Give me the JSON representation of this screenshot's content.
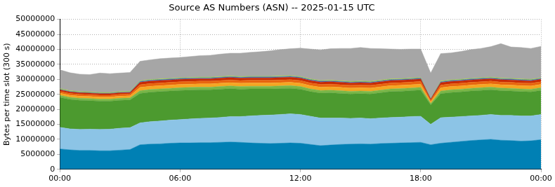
{
  "chart_data": {
    "type": "area",
    "title": "Source AS Numbers (ASN) -- 2025-01-15 UTC",
    "y_label": "Bytes per time slot (300 s)",
    "stacked": true,
    "grid": true,
    "categories": [
      "00:00",
      null,
      null,
      null,
      null,
      null,
      null,
      null,
      null,
      null,
      null,
      null,
      "06:00",
      null,
      null,
      null,
      null,
      null,
      null,
      null,
      null,
      null,
      null,
      null,
      "12:00",
      null,
      null,
      null,
      null,
      null,
      null,
      null,
      null,
      null,
      null,
      null,
      "18:00",
      null,
      null,
      null,
      null,
      null,
      null,
      null,
      null,
      null,
      null,
      null,
      "00:00"
    ],
    "ylim": [
      0,
      50000000
    ],
    "yticks": [
      0,
      5000000,
      10000000,
      15000000,
      20000000,
      25000000,
      30000000,
      35000000,
      40000000,
      45000000,
      50000000
    ],
    "series": [
      {
        "color": "#0080b4",
        "values": [
          6800000,
          6500000,
          6300000,
          6300000,
          6200000,
          6200000,
          6400000,
          6600000,
          8200000,
          8400000,
          8500000,
          8700000,
          8800000,
          8800000,
          8900000,
          8900000,
          9000000,
          9100000,
          9000000,
          8800000,
          8700000,
          8600000,
          8700000,
          8800000,
          8700000,
          8300000,
          7900000,
          8100000,
          8300000,
          8400000,
          8500000,
          8400000,
          8600000,
          8700000,
          8800000,
          8900000,
          9000000,
          8200000,
          8700000,
          9000000,
          9300000,
          9600000,
          9800000,
          10000000,
          9700000,
          9600000,
          9400000,
          9500000,
          9900000
        ]
      },
      {
        "color": "#8cc4e6",
        "values": [
          7200000,
          7000000,
          7000000,
          7100000,
          7100000,
          7200000,
          7300000,
          7300000,
          7300000,
          7500000,
          7600000,
          7700000,
          7800000,
          8000000,
          8100000,
          8200000,
          8300000,
          8500000,
          8600000,
          9000000,
          9300000,
          9500000,
          9600000,
          9700000,
          9600000,
          9400000,
          9200000,
          9000000,
          8800000,
          8600000,
          8600000,
          8500000,
          8500000,
          8600000,
          8600000,
          8700000,
          8700000,
          6800000,
          8500000,
          8400000,
          8300000,
          8200000,
          8200000,
          8300000,
          8300000,
          8400000,
          8400000,
          8300000,
          8400000
        ]
      },
      {
        "color": "#4c9a2f",
        "values": [
          10000000,
          9800000,
          9700000,
          9500000,
          9400000,
          9300000,
          9300000,
          9200000,
          9800000,
          9800000,
          9800000,
          9700000,
          9700000,
          9600000,
          9500000,
          9400000,
          9400000,
          9300000,
          9100000,
          9000000,
          8800000,
          8700000,
          8600000,
          8500000,
          8400000,
          8200000,
          8300000,
          8400000,
          8200000,
          8100000,
          8100000,
          8200000,
          8400000,
          8600000,
          8600000,
          8600000,
          8700000,
          6500000,
          8000000,
          8200000,
          8200000,
          8300000,
          8300000,
          8200000,
          8200000,
          8100000,
          8100000,
          8000000,
          8000000
        ]
      },
      {
        "color": "#7ab648",
        "values": [
          700000,
          700000,
          700000,
          700000,
          700000,
          700000,
          700000,
          700000,
          900000,
          900000,
          900000,
          900000,
          900000,
          900000,
          900000,
          900000,
          900000,
          900000,
          900000,
          900000,
          900000,
          900000,
          900000,
          900000,
          900000,
          900000,
          900000,
          900000,
          900000,
          900000,
          900000,
          900000,
          900000,
          900000,
          900000,
          900000,
          900000,
          450000,
          900000,
          900000,
          900000,
          900000,
          900000,
          900000,
          900000,
          900000,
          900000,
          900000,
          900000
        ]
      },
      {
        "color": "#f5a623",
        "values": [
          700000,
          700000,
          700000,
          700000,
          700000,
          700000,
          700000,
          700000,
          1100000,
          1100000,
          1100000,
          1100000,
          1100000,
          1100000,
          1100000,
          1100000,
          1100000,
          1100000,
          1100000,
          1100000,
          1100000,
          1100000,
          1100000,
          1100000,
          1100000,
          1100000,
          1100000,
          1100000,
          1100000,
          1100000,
          1100000,
          1100000,
          1100000,
          1100000,
          1100000,
          1100000,
          1100000,
          550000,
          1100000,
          1100000,
          1100000,
          1100000,
          1100000,
          1100000,
          1100000,
          1100000,
          1100000,
          1100000,
          1100000
        ]
      },
      {
        "color": "#e8650f",
        "values": [
          600000,
          600000,
          600000,
          600000,
          600000,
          600000,
          600000,
          600000,
          900000,
          900000,
          900000,
          900000,
          900000,
          900000,
          900000,
          900000,
          900000,
          900000,
          900000,
          900000,
          900000,
          900000,
          900000,
          900000,
          900000,
          900000,
          900000,
          900000,
          900000,
          900000,
          900000,
          900000,
          900000,
          900000,
          900000,
          900000,
          900000,
          450000,
          900000,
          900000,
          900000,
          900000,
          900000,
          900000,
          900000,
          900000,
          900000,
          900000,
          900000
        ]
      },
      {
        "color": "#c62a05",
        "values": [
          500000,
          500000,
          500000,
          500000,
          500000,
          500000,
          500000,
          500000,
          800000,
          800000,
          800000,
          800000,
          800000,
          800000,
          800000,
          800000,
          800000,
          800000,
          800000,
          800000,
          800000,
          800000,
          800000,
          800000,
          800000,
          800000,
          800000,
          800000,
          800000,
          800000,
          800000,
          800000,
          800000,
          800000,
          800000,
          800000,
          800000,
          400000,
          800000,
          800000,
          800000,
          800000,
          800000,
          800000,
          800000,
          800000,
          800000,
          800000,
          800000
        ]
      },
      {
        "color": "#3a6fc4",
        "values": [
          200000,
          200000,
          200000,
          200000,
          200000,
          200000,
          200000,
          200000,
          300000,
          300000,
          300000,
          300000,
          300000,
          300000,
          300000,
          300000,
          300000,
          300000,
          300000,
          300000,
          300000,
          300000,
          300000,
          300000,
          300000,
          300000,
          300000,
          300000,
          300000,
          300000,
          300000,
          300000,
          300000,
          300000,
          300000,
          300000,
          300000,
          150000,
          300000,
          300000,
          300000,
          300000,
          300000,
          300000,
          300000,
          300000,
          300000,
          300000,
          300000
        ]
      },
      {
        "color": "#a8d42a",
        "values": [
          200000,
          200000,
          200000,
          200000,
          200000,
          200000,
          200000,
          200000,
          200000,
          200000,
          200000,
          200000,
          200000,
          200000,
          200000,
          200000,
          200000,
          200000,
          200000,
          200000,
          200000,
          200000,
          200000,
          200000,
          200000,
          200000,
          200000,
          200000,
          200000,
          200000,
          200000,
          200000,
          200000,
          200000,
          200000,
          200000,
          200000,
          100000,
          200000,
          200000,
          200000,
          200000,
          200000,
          200000,
          200000,
          200000,
          200000,
          200000,
          200000
        ]
      },
      {
        "color": "#a6a6a6",
        "values": [
          6300000,
          6000000,
          5800000,
          5800000,
          6500000,
          6300000,
          6200000,
          6300000,
          6500000,
          6600000,
          6800000,
          6800000,
          6800000,
          7000000,
          7200000,
          7300000,
          7500000,
          7600000,
          7800000,
          8000000,
          8200000,
          8500000,
          8800000,
          9000000,
          9500000,
          10000000,
          10200000,
          10500000,
          10800000,
          11000000,
          11200000,
          11000000,
          10500000,
          10000000,
          9800000,
          9700000,
          9500000,
          8500000,
          9200000,
          9000000,
          9300000,
          9600000,
          9800000,
          10200000,
          11500000,
          10500000,
          10500000,
          10300000,
          10500000
        ]
      }
    ]
  }
}
